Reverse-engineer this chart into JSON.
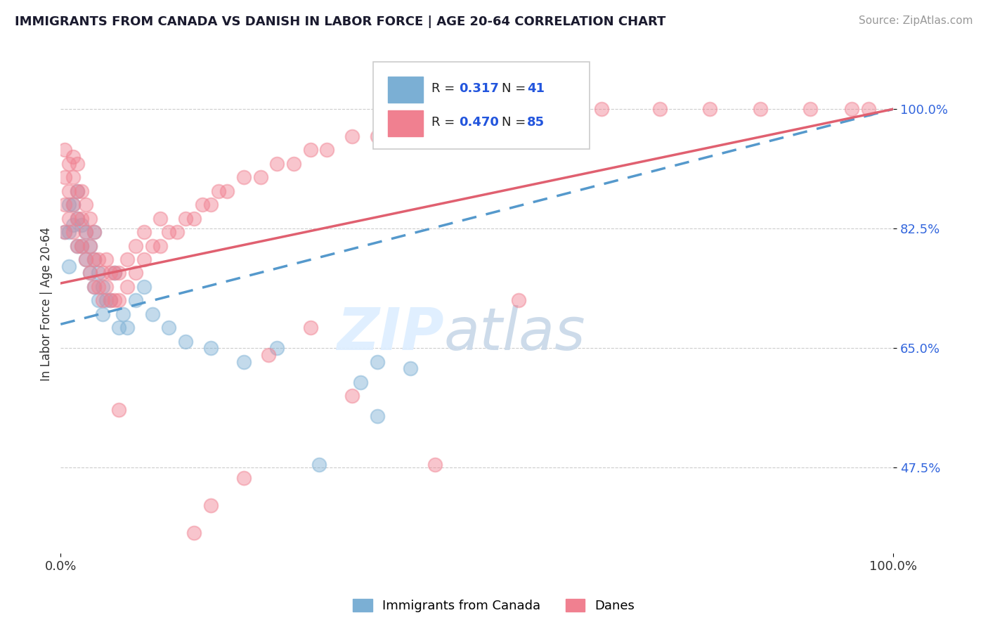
{
  "title": "IMMIGRANTS FROM CANADA VS DANISH IN LABOR FORCE | AGE 20-64 CORRELATION CHART",
  "source": "Source: ZipAtlas.com",
  "ylabel": "In Labor Force | Age 20-64",
  "y_tick_values": [
    0.475,
    0.65,
    0.825,
    1.0
  ],
  "xlim": [
    0.0,
    1.0
  ],
  "ylim": [
    0.35,
    1.08
  ],
  "blue_color": "#7BAFD4",
  "pink_color": "#F08090",
  "blue_R": 0.317,
  "blue_N": 41,
  "pink_R": 0.47,
  "pink_N": 85,
  "watermark_zip": "ZIP",
  "watermark_atlas": "atlas",
  "blue_points_x": [
    0.005,
    0.01,
    0.01,
    0.01,
    0.015,
    0.015,
    0.02,
    0.02,
    0.02,
    0.025,
    0.025,
    0.03,
    0.03,
    0.035,
    0.035,
    0.04,
    0.04,
    0.04,
    0.045,
    0.045,
    0.05,
    0.05,
    0.055,
    0.06,
    0.065,
    0.07,
    0.075,
    0.08,
    0.09,
    0.1,
    0.11,
    0.13,
    0.15,
    0.18,
    0.22,
    0.26,
    0.31,
    0.36,
    0.42,
    0.38,
    0.38
  ],
  "blue_points_y": [
    0.82,
    0.77,
    0.82,
    0.86,
    0.83,
    0.86,
    0.8,
    0.84,
    0.88,
    0.8,
    0.83,
    0.78,
    0.82,
    0.76,
    0.8,
    0.74,
    0.78,
    0.82,
    0.72,
    0.76,
    0.7,
    0.74,
    0.72,
    0.72,
    0.76,
    0.68,
    0.7,
    0.68,
    0.72,
    0.74,
    0.7,
    0.68,
    0.66,
    0.65,
    0.63,
    0.65,
    0.48,
    0.6,
    0.62,
    0.63,
    0.55
  ],
  "pink_points_x": [
    0.005,
    0.005,
    0.005,
    0.005,
    0.01,
    0.01,
    0.01,
    0.015,
    0.015,
    0.015,
    0.015,
    0.02,
    0.02,
    0.02,
    0.02,
    0.025,
    0.025,
    0.025,
    0.03,
    0.03,
    0.03,
    0.035,
    0.035,
    0.035,
    0.04,
    0.04,
    0.04,
    0.045,
    0.045,
    0.05,
    0.05,
    0.055,
    0.055,
    0.06,
    0.06,
    0.065,
    0.065,
    0.07,
    0.07,
    0.08,
    0.08,
    0.09,
    0.09,
    0.1,
    0.1,
    0.11,
    0.12,
    0.12,
    0.13,
    0.14,
    0.15,
    0.16,
    0.17,
    0.18,
    0.19,
    0.2,
    0.22,
    0.24,
    0.26,
    0.28,
    0.3,
    0.32,
    0.35,
    0.38,
    0.4,
    0.45,
    0.49,
    0.55,
    0.6,
    0.65,
    0.72,
    0.78,
    0.84,
    0.9,
    0.95,
    0.97,
    0.3,
    0.55,
    0.35,
    0.25,
    0.18,
    0.22,
    0.45,
    0.16,
    0.07
  ],
  "pink_points_y": [
    0.82,
    0.86,
    0.9,
    0.94,
    0.84,
    0.88,
    0.92,
    0.82,
    0.86,
    0.9,
    0.93,
    0.8,
    0.84,
    0.88,
    0.92,
    0.8,
    0.84,
    0.88,
    0.78,
    0.82,
    0.86,
    0.76,
    0.8,
    0.84,
    0.74,
    0.78,
    0.82,
    0.74,
    0.78,
    0.72,
    0.76,
    0.74,
    0.78,
    0.72,
    0.76,
    0.72,
    0.76,
    0.72,
    0.76,
    0.74,
    0.78,
    0.76,
    0.8,
    0.78,
    0.82,
    0.8,
    0.8,
    0.84,
    0.82,
    0.82,
    0.84,
    0.84,
    0.86,
    0.86,
    0.88,
    0.88,
    0.9,
    0.9,
    0.92,
    0.92,
    0.94,
    0.94,
    0.96,
    0.96,
    0.98,
    0.98,
    0.99,
    1.0,
    1.0,
    1.0,
    1.0,
    1.0,
    1.0,
    1.0,
    1.0,
    1.0,
    0.68,
    0.72,
    0.58,
    0.64,
    0.42,
    0.46,
    0.48,
    0.38,
    0.56
  ],
  "blue_line_x": [
    0.0,
    1.0
  ],
  "blue_line_y": [
    0.685,
    1.0
  ],
  "pink_line_x": [
    0.0,
    1.0
  ],
  "pink_line_y": [
    0.745,
    1.0
  ]
}
